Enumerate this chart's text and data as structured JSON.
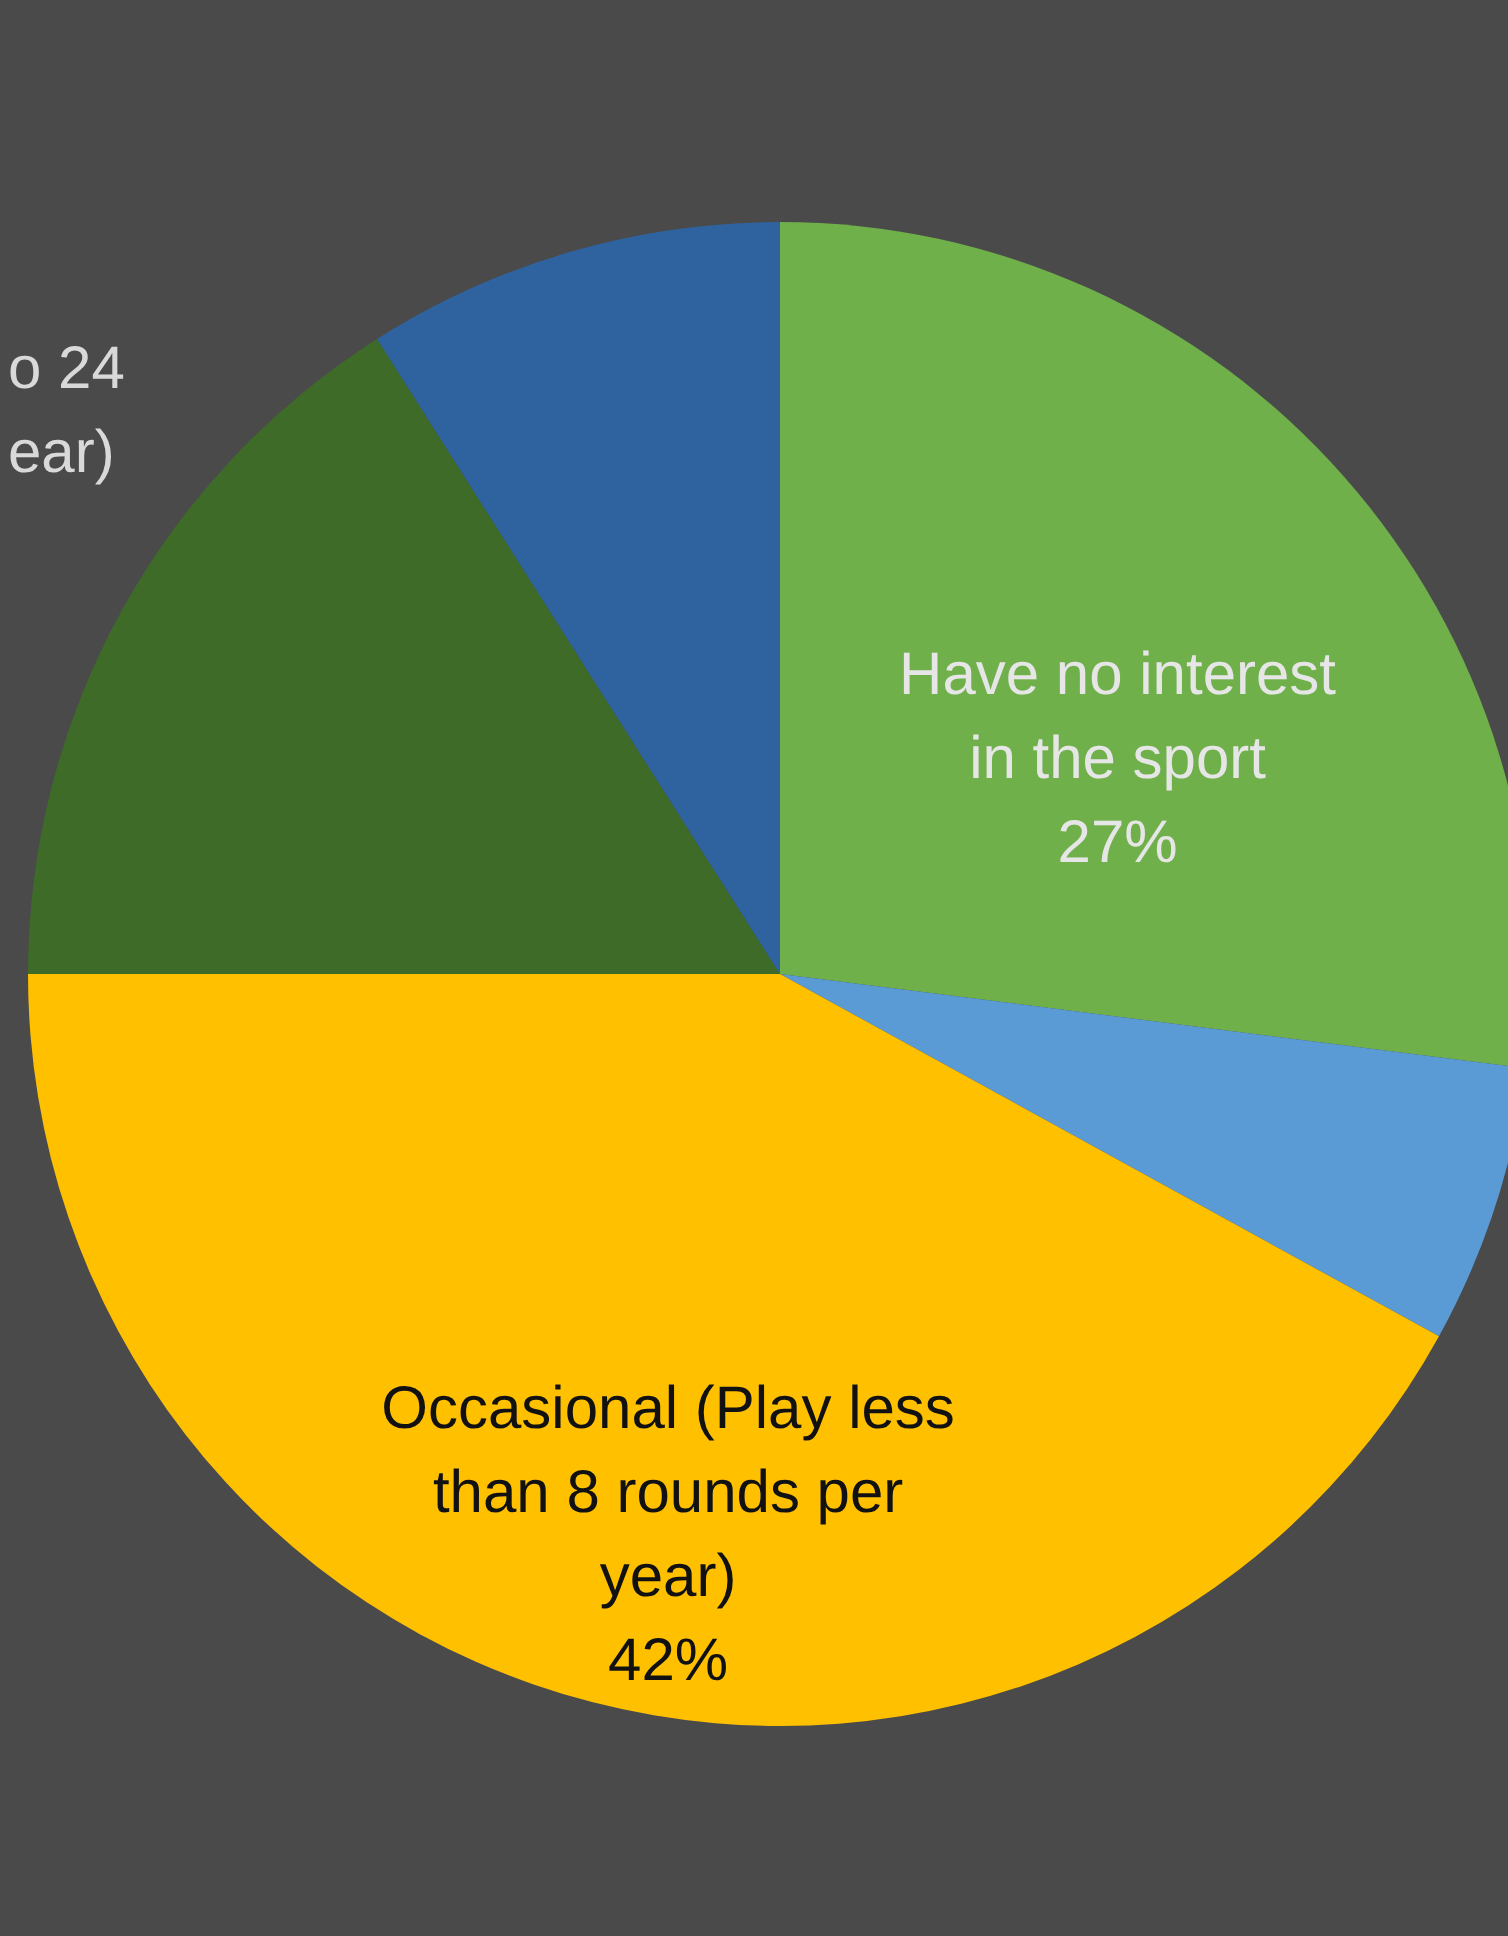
{
  "chart_data": {
    "type": "pie",
    "categories": [
      "Have no interest\nin the sport",
      null,
      "Occasional (Play less\nthan 8 rounds per\nyear)",
      null,
      null
    ],
    "values": [
      27,
      6,
      42,
      16,
      9
    ],
    "value_labels": [
      "27%",
      null,
      "42%",
      null,
      null
    ],
    "colors": [
      "#6fb04b",
      "#5b9bd5",
      "#ffc000",
      "#3f6b28",
      "#2f63a0"
    ],
    "annotations": [
      "o 24\near)"
    ]
  }
}
